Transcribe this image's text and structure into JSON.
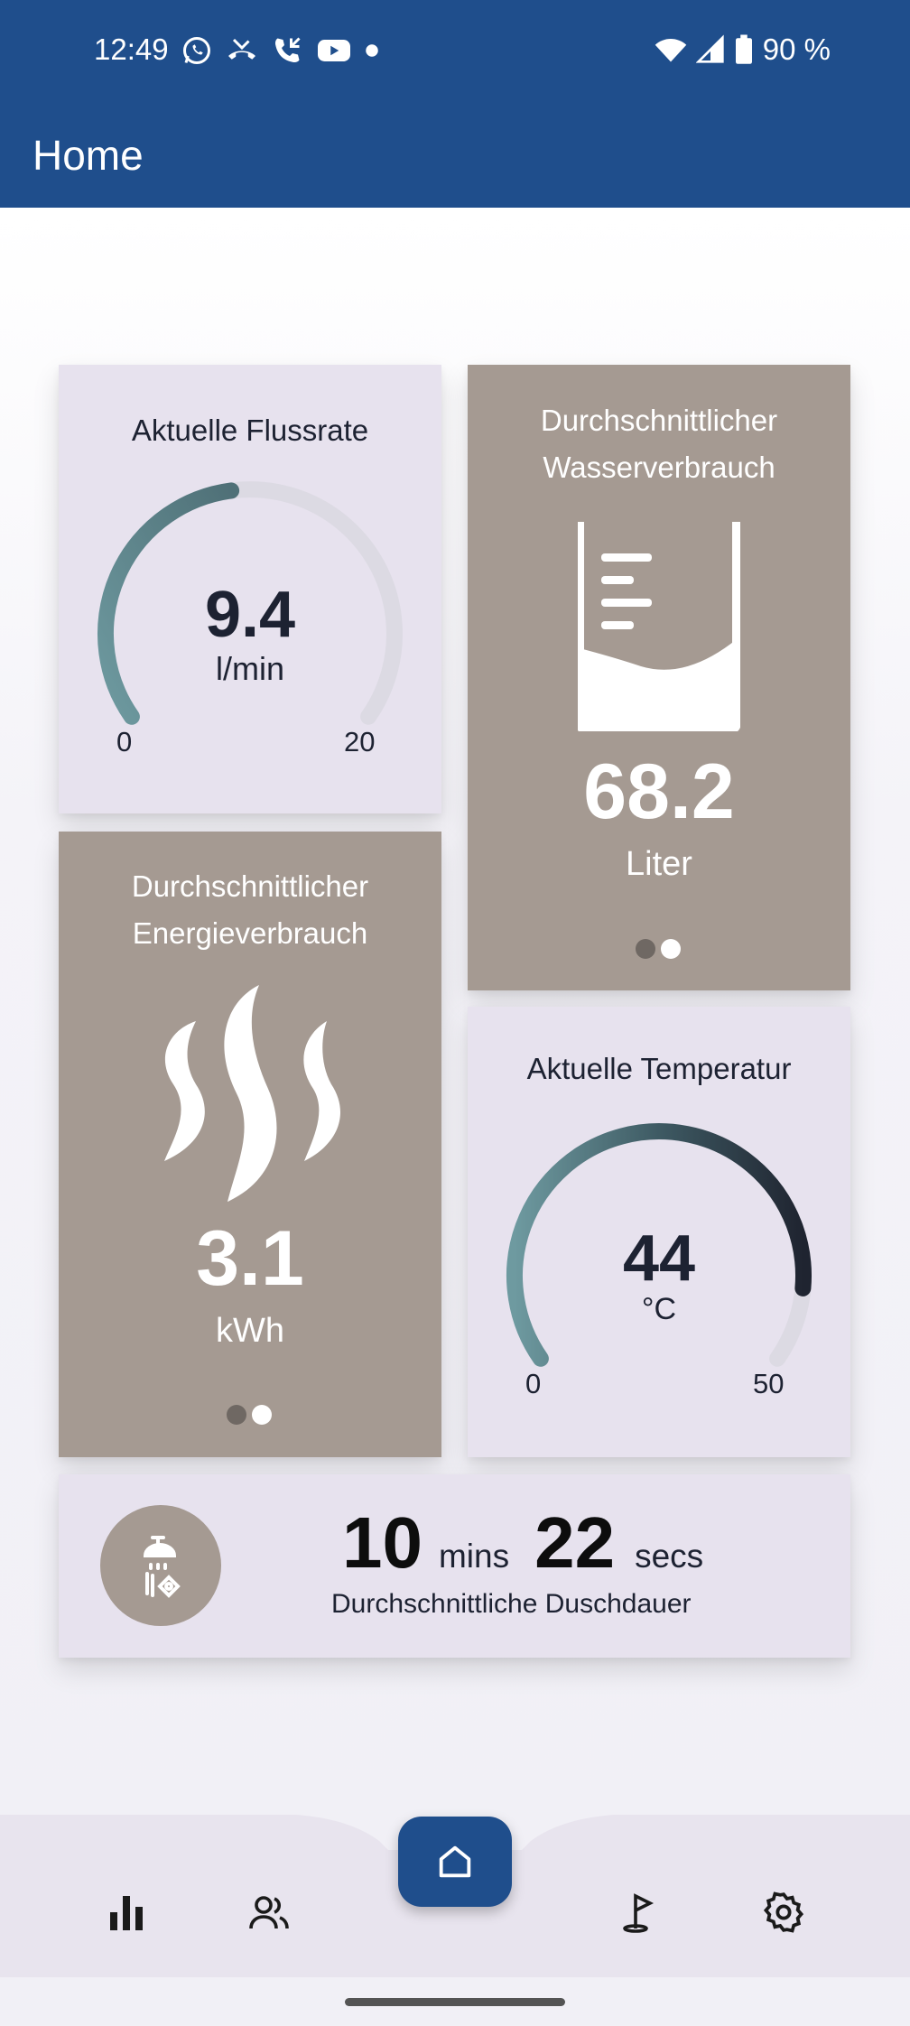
{
  "status_bar": {
    "time": "12:49",
    "battery": "90 %",
    "left_icons": [
      "whatsapp-icon",
      "missed-call-icon",
      "call-icon",
      "youtube-icon",
      "dot-icon"
    ],
    "right_icons": [
      "wifi-icon",
      "signal-icon",
      "battery-icon"
    ]
  },
  "app_bar": {
    "title": "Home"
  },
  "flow_card": {
    "title": "Aktuelle Flussrate",
    "value": "9.4",
    "unit": "l/min",
    "min": "0",
    "max": "20",
    "level": 0.47
  },
  "water_card": {
    "title_line1": "Durchschnittlicher",
    "title_line2": "Wasserverbrauch",
    "value": "68.2",
    "unit": "Liter",
    "icon": "beaker-icon",
    "page_dots": 2,
    "active_dot": 1
  },
  "energy_card": {
    "title_line1": "Durchschnittlicher",
    "title_line2": "Energieverbrauch",
    "value": "3.1",
    "unit": "kWh",
    "icon": "steam-icon",
    "page_dots": 2,
    "active_dot": 1
  },
  "temperature_card": {
    "title": "Aktuelle Temperatur",
    "value": "44",
    "unit": "°C",
    "min": "0",
    "max": "50",
    "level": 0.88
  },
  "shower_card": {
    "minutes": "10",
    "minutes_label": "mins",
    "seconds": "22",
    "seconds_label": "secs",
    "label": "Durchschnittliche Duschdauer",
    "icon": "shower-icon"
  },
  "bottom_nav": {
    "items": [
      "stats-icon",
      "users-icon",
      "home-icon",
      "golf-flag-icon",
      "settings-icon"
    ],
    "active": "home-icon"
  },
  "colors": {
    "primary": "#1f4e8c",
    "card_light": "#e7e2ee",
    "card_brown": "#a59a92",
    "gauge_start": "#6e9aa0",
    "gauge_end": "#1f2430",
    "gauge_track": "#dcdae3"
  }
}
